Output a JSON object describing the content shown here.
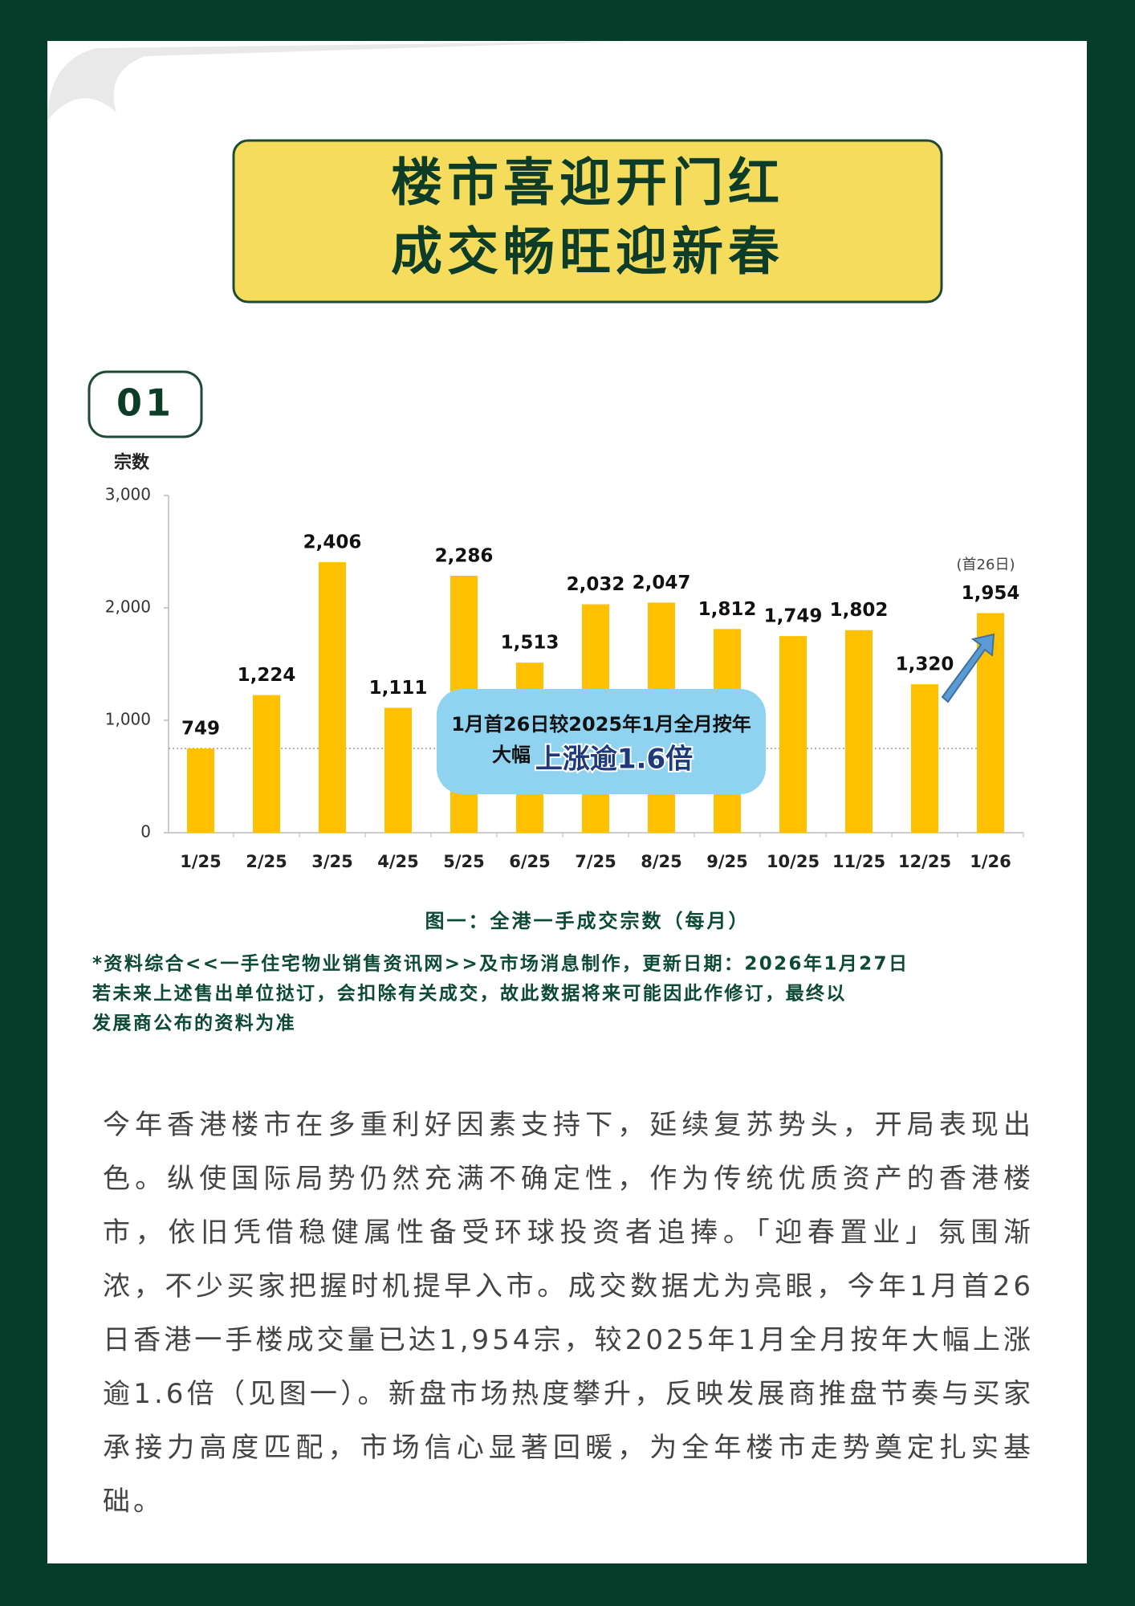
{
  "header": {
    "title_lines": [
      "楼市喜迎开门红",
      "成交畅旺迎新春"
    ]
  },
  "section_number": "01",
  "chart_data": {
    "type": "bar",
    "y_label": "宗数",
    "categories": [
      "1/25",
      "2/25",
      "3/25",
      "4/25",
      "5/25",
      "6/25",
      "7/25",
      "8/25",
      "9/25",
      "10/25",
      "11/25",
      "12/25",
      "1/26"
    ],
    "values": [
      749,
      1224,
      2406,
      1111,
      2286,
      1513,
      2032,
      2047,
      1812,
      1749,
      1802,
      1320,
      1954
    ],
    "value_labels": [
      "749",
      "1,224",
      "2,406",
      "1,111",
      "2,286",
      "1,513",
      "2,032",
      "2,047",
      "1,812",
      "1,749",
      "1,802",
      "1,320",
      "1,954"
    ],
    "color": "#ffc000",
    "ylim": [
      0,
      3000
    ],
    "yticks": [
      0,
      {
        "value": 1000,
        "label": "1,000"
      },
      {
        "value": 2000,
        "label": "2,000"
      },
      {
        "value": 3000,
        "label": "3,000"
      }
    ],
    "grid": false,
    "annotation": "(首26日)",
    "callout": {
      "line1": "1月首26日较2025年1月全月按年",
      "line2_prefix": "大幅",
      "line2_highlight": "上涨逾1.6倍"
    },
    "caption": "图一：全港一手成交宗数（每月）"
  },
  "notes": [
    "*资料综合<<一手住宅物业销售资讯网>>及市场消息制作，更新日期：2026年1月27日",
    "若未来上述售出单位挞订，会扣除有关成交，故此数据将来可能因此作修订，最终以",
    "发展商公布的资料为准"
  ],
  "paragraph": "今年香港楼市在多重利好因素支持下，延续复苏势头，开局表现出色。纵使国际局势仍然充满不确定性，作为传统优质资产的香港楼市，依旧凭借稳健属性备受环球投资者追捧。「迎春置业」氛围渐浓，不少买家把握时机提早入市。成交数据尤为亮眼，今年1月首26日香港一手楼成交量已达1,954宗，较2025年1月全月按年大幅上涨逾1.6倍（见图一）。新盘市场热度攀升，反映发展商推盘节奏与买家承接力高度匹配，市场信心显著回暖，为全年楼市走势奠定扎实基础。"
}
